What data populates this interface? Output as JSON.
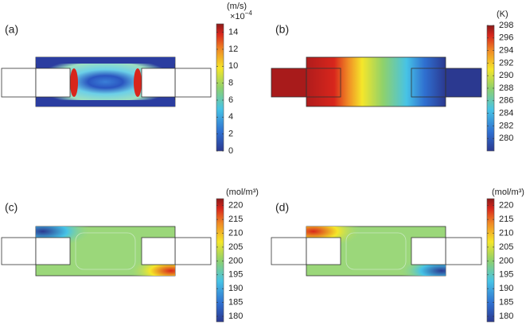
{
  "panels": [
    {
      "label": "(a)",
      "unit": "(m/s)",
      "multiplier": "×10",
      "exponent": "−4",
      "clim": [
        0,
        15
      ],
      "ticks": [
        0,
        2,
        4,
        6,
        8,
        10,
        12,
        14
      ]
    },
    {
      "label": "(b)",
      "unit": "(K)",
      "clim": [
        278,
        298
      ],
      "ticks": [
        280,
        282,
        284,
        286,
        288,
        290,
        292,
        294,
        296,
        298
      ]
    },
    {
      "label": "(c)",
      "unit": "(mol/m³)",
      "clim": [
        178,
        222.5
      ],
      "ticks": [
        180,
        185,
        190,
        195,
        200,
        205,
        210,
        215,
        220
      ]
    },
    {
      "label": "(d)",
      "unit": "(mol/m³)",
      "clim": [
        178,
        222.5
      ],
      "ticks": [
        180,
        185,
        190,
        195,
        200,
        205,
        210,
        215,
        220
      ]
    }
  ]
}
